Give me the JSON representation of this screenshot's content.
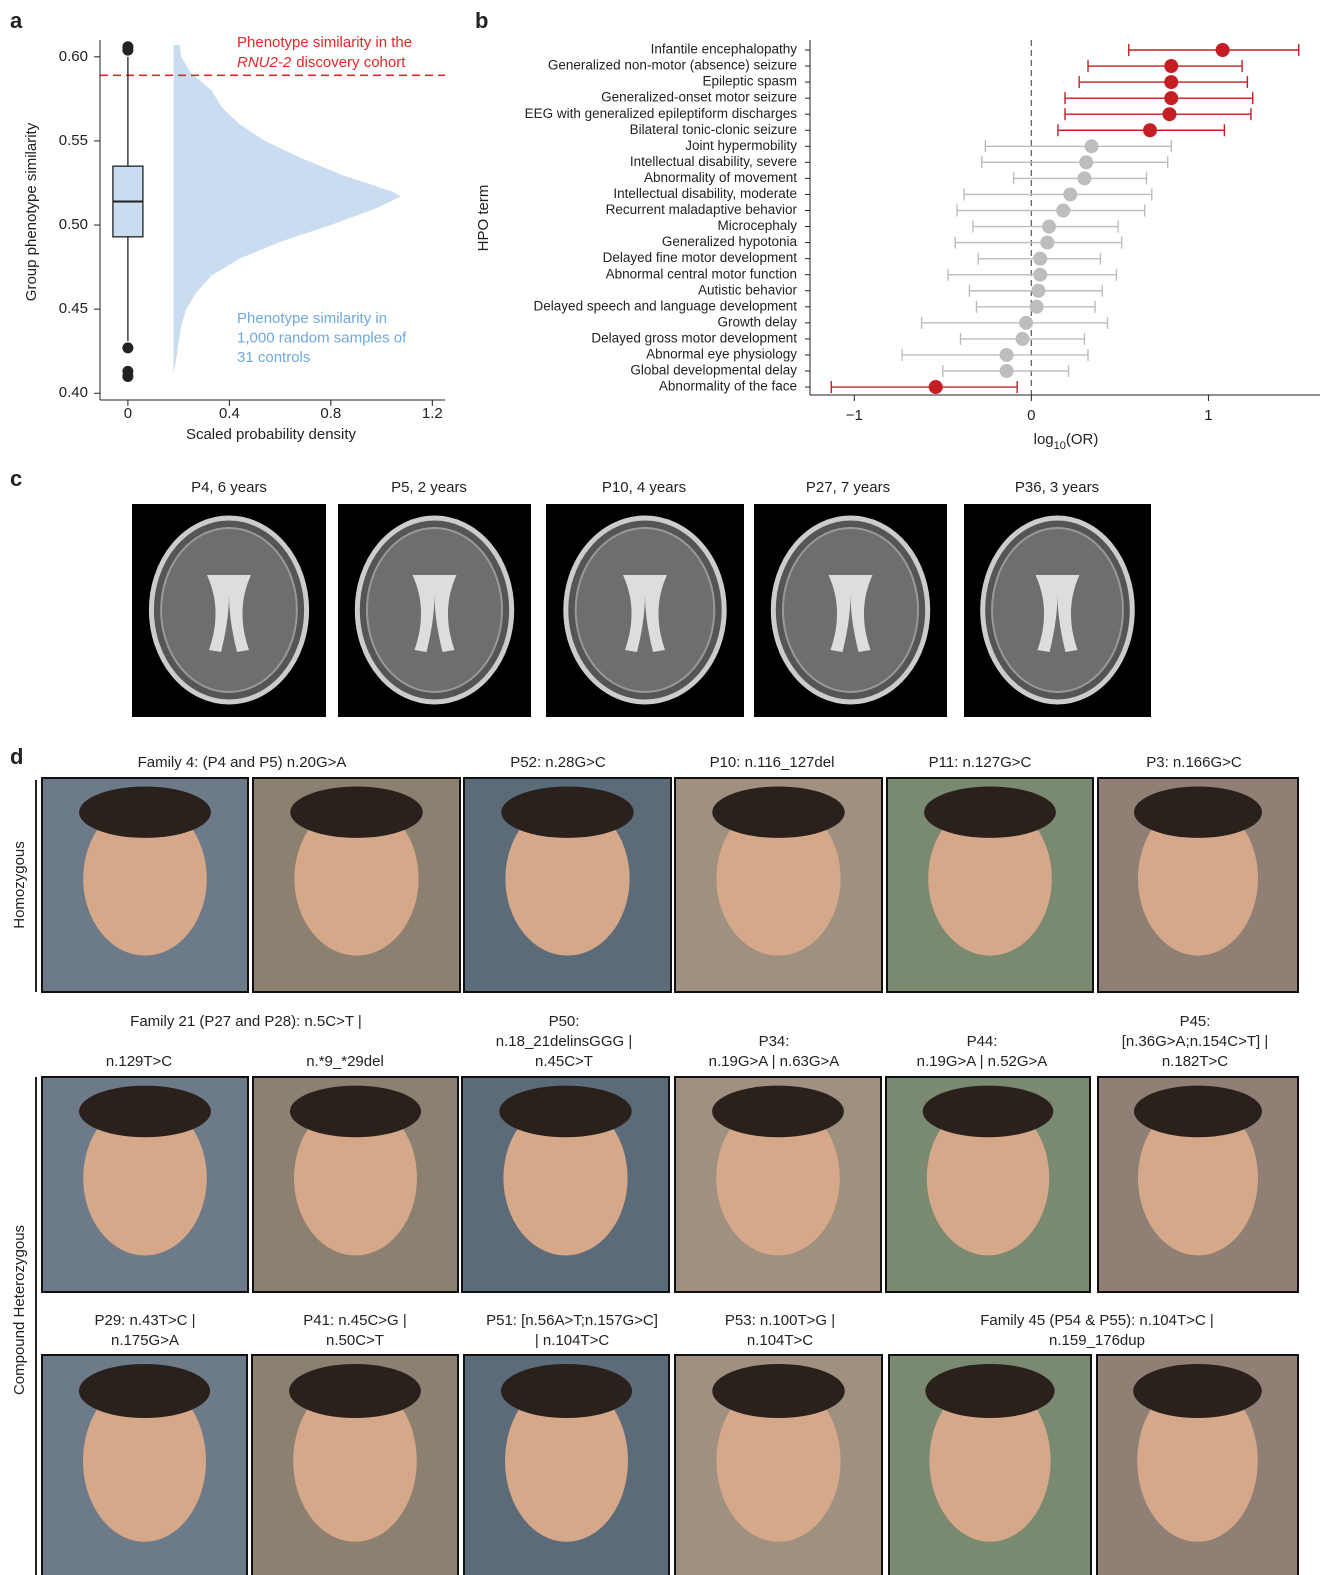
{
  "panel_labels": [
    "a",
    "b",
    "c",
    "d"
  ],
  "chart_data": [
    {
      "type": "box_density",
      "ylabel": "Group phenotype similarity",
      "xlabel": "Scaled probability density",
      "xlim": [
        -0.11,
        1.25
      ],
      "ylim": [
        0.396,
        0.61
      ],
      "xticks": [
        0,
        0.4,
        0.8,
        1.2
      ],
      "yticks": [
        {
          "value": 0.4,
          "label": "0.40"
        },
        0.45,
        {
          "value": 0.5,
          "label": "0.50"
        },
        0.55,
        {
          "value": 0.6,
          "label": "0.60"
        }
      ],
      "box": {
        "x": 0,
        "median": 0.514,
        "q1": 0.493,
        "q3": 0.535,
        "whisker_low": 0.431,
        "whisker_high": 0.6,
        "outliers": [
          0.606,
          0.604,
          0.427,
          0.413,
          0.41
        ],
        "color": "#c9dcf0"
      },
      "density": {
        "base": 0.18,
        "color": "#c9dcf0",
        "y": [
          0.607,
          0.6,
          0.59,
          0.58,
          0.57,
          0.56,
          0.55,
          0.54,
          0.53,
          0.52,
          0.517,
          0.51,
          0.5,
          0.49,
          0.48,
          0.47,
          0.46,
          0.45,
          0.44,
          0.43,
          0.42,
          0.412
        ],
        "x": [
          0.205,
          0.21,
          0.25,
          0.33,
          0.37,
          0.44,
          0.54,
          0.68,
          0.84,
          1.04,
          1.075,
          0.98,
          0.8,
          0.6,
          0.44,
          0.33,
          0.27,
          0.23,
          0.21,
          0.2,
          0.19,
          0.18
        ],
        "label_lines": [
          "Phenotype similarity in",
          "1,000 random samples of",
          "31 controls"
        ],
        "label_color": "#6fa8dc"
      },
      "reference_line": {
        "value": 0.589,
        "color": "#e8262a",
        "label_line1": "Phenotype similarity in the",
        "label_italic": "RNU2-2",
        "label_rest": "discovery cohort"
      }
    },
    {
      "type": "forest",
      "ylabel": "HPO term",
      "xlabel": {
        "text": "log",
        "subscript": "10",
        "suffix": "(OR)"
      },
      "xlim": [
        -1.25,
        1.63
      ],
      "xticks": [
        {
          "value": -1,
          "label": "−1"
        },
        0,
        1
      ],
      "reference_x": 0,
      "categories": [
        "Infantile encephalopathy",
        "Generalized non-motor (absence) seizure",
        "Epileptic spasm",
        "Generalized-onset motor seizure",
        "EEG with generalized epileptiform discharges",
        "Bilateral tonic-clonic seizure",
        "Joint hypermobility",
        "Intellectual disability, severe",
        "Abnormality of movement",
        "Intellectual disability, moderate",
        "Recurrent maladaptive behavior",
        "Microcephaly",
        "Generalized hypotonia",
        "Delayed fine motor development",
        "Abnormal central motor function",
        "Autistic behavior",
        "Delayed speech and language development",
        "Growth delay",
        "Delayed gross motor development",
        "Abnormal eye physiology",
        "Global developmental delay",
        "Abnormality of the face"
      ],
      "values": [
        1.08,
        0.79,
        0.79,
        0.79,
        0.78,
        0.67,
        0.34,
        0.31,
        0.3,
        0.22,
        0.18,
        0.1,
        0.09,
        0.05,
        0.05,
        0.04,
        0.03,
        -0.03,
        -0.05,
        -0.14,
        -0.14,
        -0.54
      ],
      "lower": [
        0.55,
        0.32,
        0.27,
        0.19,
        0.19,
        0.15,
        -0.26,
        -0.28,
        -0.1,
        -0.38,
        -0.42,
        -0.33,
        -0.43,
        -0.3,
        -0.47,
        -0.35,
        -0.31,
        -0.62,
        -0.4,
        -0.73,
        -0.5,
        -1.13
      ],
      "upper": [
        1.51,
        1.19,
        1.22,
        1.25,
        1.24,
        1.09,
        0.79,
        0.77,
        0.65,
        0.68,
        0.64,
        0.49,
        0.51,
        0.39,
        0.48,
        0.4,
        0.36,
        0.43,
        0.3,
        0.32,
        0.21,
        -0.08
      ],
      "colors": [
        "#c41e24",
        "#c41e24",
        "#c41e24",
        "#c41e24",
        "#c41e24",
        "#c41e24",
        "#bdbdbd",
        "#bdbdbd",
        "#bdbdbd",
        "#bdbdbd",
        "#bdbdbd",
        "#bdbdbd",
        "#bdbdbd",
        "#bdbdbd",
        "#bdbdbd",
        "#bdbdbd",
        "#bdbdbd",
        "#bdbdbd",
        "#bdbdbd",
        "#bdbdbd",
        "#bdbdbd",
        "#c41e24"
      ]
    }
  ],
  "panel_c": {
    "labels": [
      "P4, 6 years",
      "P5, 2 years",
      "P10, 4 years",
      "P27, 7 years",
      "P36, 3 years"
    ]
  },
  "panel_d": {
    "groups": [
      "Homozygous",
      "Compound Heterozygous"
    ],
    "labels": [
      [
        "Family 4: (P4 and P5) n.20G>A"
      ],
      [
        "P52: n.28G>C"
      ],
      [
        "P10: n.116_127del"
      ],
      [
        "P11: n.127G>C"
      ],
      [
        "P3: n.166G>C"
      ],
      [
        "Family 21 (P27 and P28): n.5C>T |"
      ],
      [
        "n.129T>C"
      ],
      [
        "n.*9_*29del"
      ],
      [
        "P50:",
        "n.18_21delinsGGG |",
        "n.45C>T"
      ],
      [
        "P34:",
        "n.19G>A | n.63G>A"
      ],
      [
        "P44:",
        "n.19G>A | n.52G>A"
      ],
      [
        "P45:",
        "[n.36G>A;n.154C>T] |",
        "n.182T>C"
      ],
      [
        "P29: n.43T>C |",
        "n.175G>A"
      ],
      [
        "P41: n.45C>G |",
        "n.50C>T"
      ],
      [
        "P51: [n.56A>T;n.157G>C]",
        "| n.104T>C"
      ],
      [
        "P53: n.100T>G |",
        "n.104T>C"
      ],
      [
        "Family 45 (P54 & P55): n.104T>C |",
        "n.159_176dup"
      ]
    ]
  }
}
